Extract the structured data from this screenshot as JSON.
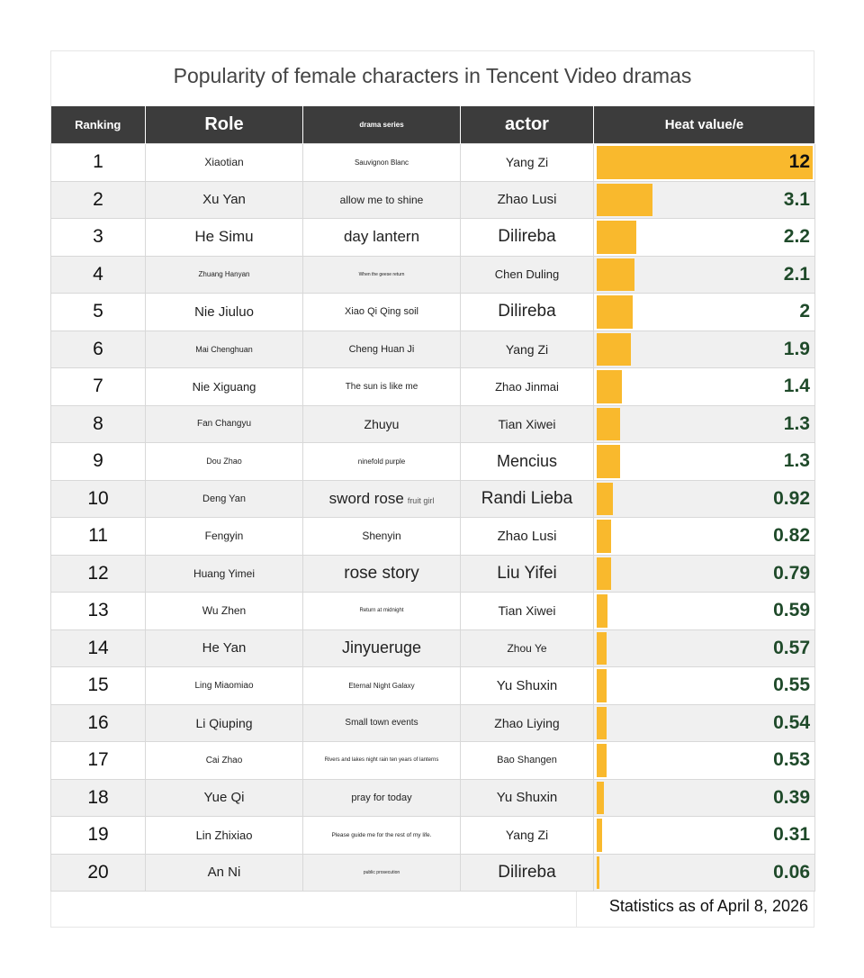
{
  "title": "Popularity of female characters in Tencent Video dramas",
  "columns": {
    "ranking": "Ranking",
    "role": "Role",
    "series": "drama series",
    "actor": "actor",
    "heat": "Heat value/e"
  },
  "footer": "Statistics as of April 8, 2026",
  "colors": {
    "bar": "#f9b92d",
    "header": "#3c3c3c",
    "value": "#1f4a2a"
  },
  "chart_data": {
    "type": "bar",
    "title": "Popularity of female characters in Tencent Video dramas",
    "xlabel": "",
    "ylabel": "Heat value/e",
    "ylim": [
      0,
      12
    ],
    "rows": [
      {
        "rank": "1",
        "role": "Xiaotian",
        "series": "Sauvignon Blanc",
        "actor": "Yang Zi",
        "value": 12,
        "label": "12"
      },
      {
        "rank": "2",
        "role": "Xu Yan",
        "series": "allow me to shine",
        "actor": "Zhao Lusi",
        "value": 3.1,
        "label": "3.1"
      },
      {
        "rank": "3",
        "role": "He Simu",
        "series": "day lantern",
        "actor": "Dilireba",
        "value": 2.2,
        "label": "2.2"
      },
      {
        "rank": "4",
        "role": "Zhuang Hanyan",
        "series": "When the geese return",
        "actor": "Chen Duling",
        "value": 2.1,
        "label": "2.1"
      },
      {
        "rank": "5",
        "role": "Nie Jiuluo",
        "series": "Xiao Qi Qing soil",
        "actor": "Dilireba",
        "value": 2,
        "label": "2"
      },
      {
        "rank": "6",
        "role": "Mai Chenghuan",
        "series": "Cheng Huan Ji",
        "actor": "Yang Zi",
        "value": 1.9,
        "label": "1.9"
      },
      {
        "rank": "7",
        "role": "Nie Xiguang",
        "series": "The sun is like me",
        "actor": "Zhao Jinmai",
        "value": 1.4,
        "label": "1.4"
      },
      {
        "rank": "8",
        "role": "Fan Changyu",
        "series": "Zhuyu",
        "actor": "Tian Xiwei",
        "value": 1.3,
        "label": "1.3"
      },
      {
        "rank": "9",
        "role": "Dou Zhao",
        "series": "ninefold purple",
        "actor": "Mencius",
        "value": 1.3,
        "label": "1.3"
      },
      {
        "rank": "10",
        "role": "Deng Yan",
        "series": "sword rose",
        "aside": "fruit girl",
        "actor": "Randi Lieba",
        "value": 0.92,
        "label": "0.92"
      },
      {
        "rank": "11",
        "role": "Fengyin",
        "series": "Shenyin",
        "actor": "Zhao Lusi",
        "value": 0.82,
        "label": "0.82"
      },
      {
        "rank": "12",
        "role": "Huang Yimei",
        "series": "rose story",
        "actor": "Liu Yifei",
        "value": 0.79,
        "label": "0.79"
      },
      {
        "rank": "13",
        "role": "Wu Zhen",
        "series": "Return at midnight",
        "actor": "Tian Xiwei",
        "value": 0.59,
        "label": "0.59"
      },
      {
        "rank": "14",
        "role": "He Yan",
        "series": "Jinyueruge",
        "actor": "Zhou Ye",
        "value": 0.57,
        "label": "0.57"
      },
      {
        "rank": "15",
        "role": "Ling Miaomiao",
        "series": "Eternal Night Galaxy",
        "actor": "Yu Shuxin",
        "value": 0.55,
        "label": "0.55"
      },
      {
        "rank": "16",
        "role": "Li Qiuping",
        "series": "Small town events",
        "actor": "Zhao Liying",
        "value": 0.54,
        "label": "0.54"
      },
      {
        "rank": "17",
        "role": "Cai Zhao",
        "series": "Rivers and lakes night rain ten years of lanterns",
        "actor": "Bao Shangen",
        "value": 0.53,
        "label": "0.53"
      },
      {
        "rank": "18",
        "role": "Yue Qi",
        "series": "pray for today",
        "actor": "Yu Shuxin",
        "value": 0.39,
        "label": "0.39"
      },
      {
        "rank": "19",
        "role": "Lin Zhixiao",
        "series": "Please guide me for the rest of my life.",
        "actor": "Yang Zi",
        "value": 0.31,
        "label": "0.31"
      },
      {
        "rank": "20",
        "role": "An Ni",
        "series": "public prosecution",
        "actor": "Dilireba",
        "value": 0.06,
        "label": "0.06"
      }
    ]
  }
}
